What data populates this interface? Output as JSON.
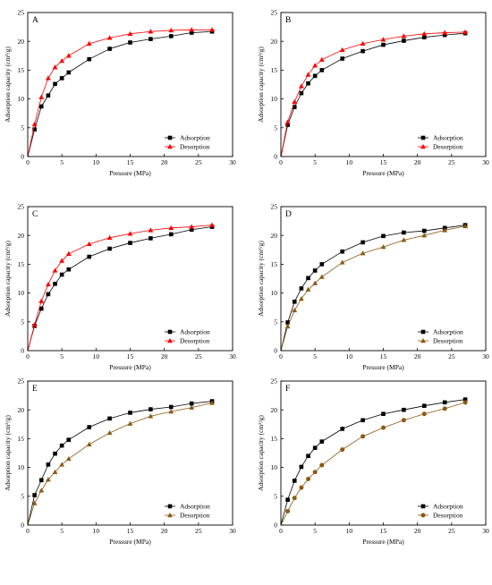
{
  "chart_data": [
    {
      "type": "line",
      "title": "A",
      "xlabel": "Pressure (MPa)",
      "ylabel": "Adsorption capacity (cm³/g)",
      "xlim": [
        0,
        30
      ],
      "ylim": [
        0,
        25
      ],
      "xticks": [
        0,
        5,
        10,
        15,
        20,
        25,
        30
      ],
      "yticks": [
        0,
        5,
        10,
        15,
        20,
        25
      ],
      "legend_position": "bottom-right",
      "series": [
        {
          "name": "Adsorption",
          "color": "#000000",
          "marker": "square",
          "x": [
            0,
            1,
            2,
            3,
            4,
            5,
            6,
            9,
            12,
            15,
            18,
            21,
            24,
            27
          ],
          "y": [
            0,
            4.7,
            8.7,
            10.6,
            12.6,
            13.6,
            14.6,
            16.9,
            18.7,
            19.8,
            20.4,
            20.9,
            21.5,
            21.7
          ]
        },
        {
          "name": "Desorption",
          "color": "#ff0000",
          "marker": "triangle-up",
          "x": [
            0,
            1,
            2,
            3,
            4,
            5,
            6,
            9,
            12,
            15,
            18,
            21,
            24,
            27
          ],
          "y": [
            0,
            5.6,
            10.3,
            13.6,
            15.5,
            16.6,
            17.5,
            19.6,
            20.6,
            21.3,
            21.7,
            21.9,
            22.0,
            22.0
          ]
        }
      ]
    },
    {
      "type": "line",
      "title": "B",
      "xlabel": "Pressure (MPa)",
      "ylabel": "Adsorption capacity (cm³/g)",
      "xlim": [
        0,
        30
      ],
      "ylim": [
        0,
        25
      ],
      "xticks": [
        0,
        5,
        10,
        15,
        20,
        25,
        30
      ],
      "yticks": [
        0,
        5,
        10,
        15,
        20,
        25
      ],
      "legend_position": "bottom-right",
      "series": [
        {
          "name": "Adsorption",
          "color": "#000000",
          "marker": "square",
          "x": [
            0,
            1,
            2,
            3,
            4,
            5,
            6,
            9,
            12,
            15,
            18,
            21,
            24,
            27
          ],
          "y": [
            0,
            5.5,
            8.6,
            11.0,
            12.7,
            14.0,
            15.0,
            17.0,
            18.3,
            19.4,
            20.1,
            20.7,
            21.1,
            21.4
          ]
        },
        {
          "name": "Desorption",
          "color": "#ff0000",
          "marker": "triangle-up",
          "x": [
            0,
            1,
            2,
            3,
            4,
            5,
            6,
            9,
            12,
            15,
            18,
            21,
            24,
            27
          ],
          "y": [
            0,
            6.0,
            9.5,
            12.2,
            14.2,
            15.8,
            16.8,
            18.5,
            19.6,
            20.3,
            20.9,
            21.3,
            21.5,
            21.6
          ]
        }
      ]
    },
    {
      "type": "line",
      "title": "C",
      "xlabel": "Pressure (MPa)",
      "ylabel": "Adsorption capacity (cm³/g)",
      "xlim": [
        0,
        30
      ],
      "ylim": [
        0,
        25
      ],
      "xticks": [
        0,
        5,
        10,
        15,
        20,
        25,
        30
      ],
      "yticks": [
        0,
        5,
        10,
        15,
        20,
        25
      ],
      "legend_position": "bottom-right",
      "series": [
        {
          "name": "Adsorption",
          "color": "#000000",
          "marker": "square",
          "x": [
            0,
            1,
            2,
            3,
            4,
            5,
            6,
            9,
            12,
            15,
            18,
            21,
            24,
            27
          ],
          "y": [
            0,
            4.3,
            7.3,
            9.8,
            11.6,
            13.2,
            14.1,
            16.3,
            17.7,
            18.7,
            19.5,
            20.2,
            21.0,
            21.5
          ]
        },
        {
          "name": "Desorption",
          "color": "#ff0000",
          "marker": "triangle-up",
          "x": [
            0,
            1,
            2,
            3,
            4,
            5,
            6,
            9,
            12,
            15,
            18,
            21,
            24,
            27
          ],
          "y": [
            0,
            4.5,
            8.6,
            11.5,
            13.9,
            15.6,
            16.8,
            18.5,
            19.6,
            20.3,
            20.9,
            21.3,
            21.5,
            21.8
          ]
        }
      ]
    },
    {
      "type": "line",
      "title": "D",
      "xlabel": "Pressure (MPa)",
      "ylabel": "Adsorption capacity (cm³/g)",
      "xlim": [
        0,
        30
      ],
      "ylim": [
        0,
        25
      ],
      "xticks": [
        0,
        5,
        10,
        15,
        20,
        25,
        30
      ],
      "yticks": [
        0,
        5,
        10,
        15,
        20,
        25
      ],
      "legend_position": "bottom-right",
      "series": [
        {
          "name": "Adsorption",
          "color": "#000000",
          "marker": "square",
          "x": [
            0,
            1,
            2,
            3,
            4,
            5,
            6,
            9,
            12,
            15,
            18,
            21,
            24,
            27
          ],
          "y": [
            0,
            4.9,
            8.5,
            10.8,
            12.6,
            13.9,
            15.0,
            17.2,
            18.8,
            19.9,
            20.5,
            20.8,
            21.3,
            21.8
          ]
        },
        {
          "name": "Desorption",
          "color": "#8b5a14",
          "marker": "triangle-up",
          "x": [
            0,
            1,
            2,
            3,
            4,
            5,
            6,
            9,
            12,
            15,
            18,
            21,
            24,
            27
          ],
          "y": [
            0,
            4.2,
            7.0,
            9.0,
            10.6,
            11.7,
            12.8,
            15.3,
            16.9,
            18.0,
            19.2,
            20.0,
            20.9,
            21.6
          ]
        }
      ]
    },
    {
      "type": "line",
      "title": "E",
      "xlabel": "Pressure (MPa)",
      "ylabel": "Adsorption capacity (cm³/g)",
      "xlim": [
        0,
        30
      ],
      "ylim": [
        0,
        25
      ],
      "xticks": [
        0,
        5,
        10,
        15,
        20,
        25,
        30
      ],
      "yticks": [
        0,
        5,
        10,
        15,
        20,
        25
      ],
      "legend_position": "bottom-right",
      "series": [
        {
          "name": "Adsorption",
          "color": "#000000",
          "marker": "square",
          "x": [
            0,
            1,
            2,
            3,
            4,
            5,
            6,
            9,
            12,
            15,
            18,
            21,
            24,
            27
          ],
          "y": [
            0,
            5.2,
            7.8,
            10.5,
            12.4,
            13.8,
            14.8,
            17.0,
            18.5,
            19.5,
            20.1,
            20.5,
            21.1,
            21.5
          ]
        },
        {
          "name": "Desorption",
          "color": "#8b5a14",
          "marker": "triangle-up",
          "x": [
            0,
            1,
            2,
            3,
            4,
            5,
            6,
            9,
            12,
            15,
            18,
            21,
            24,
            27
          ],
          "y": [
            0,
            3.8,
            6.0,
            7.9,
            9.2,
            10.5,
            11.5,
            14.0,
            16.0,
            17.6,
            18.9,
            19.7,
            20.4,
            21.2
          ]
        }
      ]
    },
    {
      "type": "line",
      "title": "F",
      "xlabel": "Pressure (MPa)",
      "ylabel": "Adsorption capacity (cm³/g)",
      "xlim": [
        0,
        30
      ],
      "ylim": [
        0,
        25
      ],
      "xticks": [
        0,
        5,
        10,
        15,
        20,
        25,
        30
      ],
      "yticks": [
        0,
        5,
        10,
        15,
        20,
        25
      ],
      "legend_position": "bottom-right",
      "series": [
        {
          "name": "Adsorption",
          "color": "#000000",
          "marker": "square",
          "x": [
            0,
            1,
            2,
            3,
            4,
            5,
            6,
            9,
            12,
            15,
            18,
            21,
            24,
            27
          ],
          "y": [
            0,
            4.4,
            7.7,
            10.1,
            12.0,
            13.4,
            14.5,
            16.7,
            18.2,
            19.3,
            20.0,
            20.7,
            21.3,
            21.8
          ]
        },
        {
          "name": "Desorption",
          "color": "#8b5a14",
          "marker": "circle",
          "x": [
            0,
            1,
            2,
            3,
            4,
            5,
            6,
            9,
            12,
            15,
            18,
            21,
            24,
            27
          ],
          "y": [
            0,
            2.4,
            4.7,
            6.5,
            8.0,
            9.2,
            10.4,
            13.1,
            15.4,
            16.9,
            18.2,
            19.3,
            20.2,
            21.3
          ]
        }
      ]
    }
  ]
}
